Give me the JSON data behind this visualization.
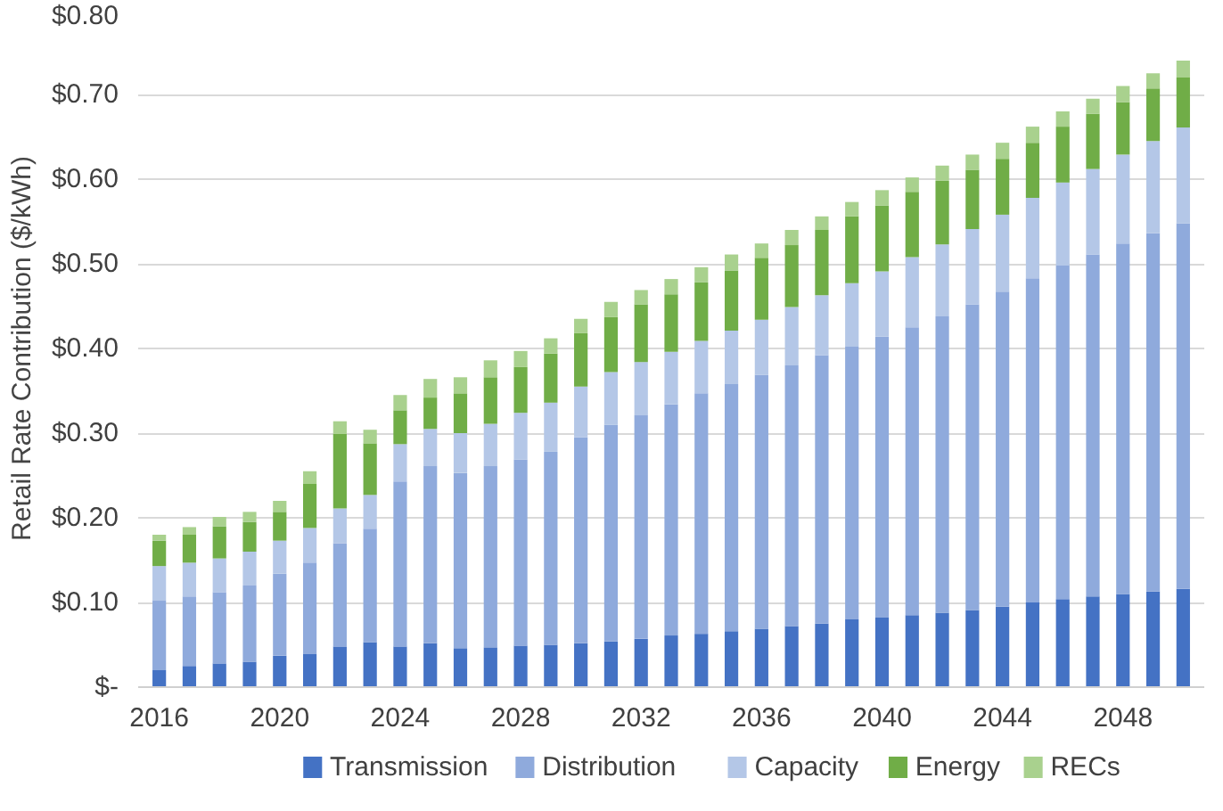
{
  "chart_data": {
    "type": "bar",
    "stacked": true,
    "ylabel": "Retail Rate Contribution ($/kWh)",
    "x": [
      2016,
      2017,
      2018,
      2019,
      2020,
      2021,
      2022,
      2023,
      2024,
      2025,
      2026,
      2027,
      2028,
      2029,
      2030,
      2031,
      2032,
      2033,
      2034,
      2035,
      2036,
      2037,
      2038,
      2039,
      2040,
      2041,
      2042,
      2043,
      2044,
      2045,
      2046,
      2047,
      2048,
      2049,
      2050
    ],
    "xlim": [
      2015.3,
      2050.7
    ],
    "xticks": [
      2016,
      2020,
      2024,
      2028,
      2032,
      2036,
      2040,
      2044,
      2048
    ],
    "ylim": [
      0,
      0.8
    ],
    "yticks": [
      {
        "value": 0,
        "label": "$-"
      },
      {
        "value": 0.1,
        "label": "$0.10"
      },
      {
        "value": 0.2,
        "label": "$0.20"
      },
      {
        "value": 0.3,
        "label": "$0.30"
      },
      {
        "value": 0.4,
        "label": "$0.40"
      },
      {
        "value": 0.5,
        "label": "$0.50"
      },
      {
        "value": 0.6,
        "label": "$0.60"
      },
      {
        "value": 0.7,
        "label": "$0.70"
      },
      {
        "value": 0.8,
        "label": "$0.80"
      }
    ],
    "grid": "y",
    "legend": "bottom",
    "series": [
      {
        "name": "Transmission",
        "color": "#4472c4",
        "values": [
          0.02,
          0.025,
          0.028,
          0.03,
          0.037,
          0.039,
          0.048,
          0.053,
          0.048,
          0.052,
          0.046,
          0.047,
          0.049,
          0.05,
          0.052,
          0.054,
          0.057,
          0.061,
          0.063,
          0.066,
          0.069,
          0.072,
          0.075,
          0.08,
          0.082,
          0.085,
          0.088,
          0.091,
          0.095,
          0.1,
          0.104,
          0.107,
          0.11,
          0.113,
          0.116
        ]
      },
      {
        "name": "Distribution",
        "color": "#8faadc",
        "values": [
          0.082,
          0.082,
          0.084,
          0.09,
          0.097,
          0.108,
          0.122,
          0.134,
          0.195,
          0.209,
          0.207,
          0.214,
          0.22,
          0.228,
          0.243,
          0.256,
          0.264,
          0.273,
          0.284,
          0.292,
          0.3,
          0.308,
          0.317,
          0.322,
          0.332,
          0.34,
          0.35,
          0.361,
          0.372,
          0.383,
          0.394,
          0.404,
          0.414,
          0.423,
          0.432
        ]
      },
      {
        "name": "Capacity",
        "color": "#b4c7e7",
        "values": [
          0.041,
          0.04,
          0.04,
          0.04,
          0.039,
          0.041,
          0.041,
          0.04,
          0.044,
          0.044,
          0.047,
          0.05,
          0.055,
          0.058,
          0.06,
          0.062,
          0.063,
          0.062,
          0.062,
          0.063,
          0.065,
          0.069,
          0.071,
          0.075,
          0.077,
          0.083,
          0.085,
          0.089,
          0.091,
          0.095,
          0.098,
          0.101,
          0.105,
          0.109,
          0.113
        ]
      },
      {
        "name": "Energy",
        "color": "#70ad47",
        "values": [
          0.03,
          0.033,
          0.038,
          0.035,
          0.034,
          0.052,
          0.088,
          0.061,
          0.04,
          0.037,
          0.047,
          0.055,
          0.054,
          0.058,
          0.063,
          0.065,
          0.068,
          0.068,
          0.069,
          0.071,
          0.073,
          0.073,
          0.077,
          0.079,
          0.078,
          0.077,
          0.075,
          0.07,
          0.066,
          0.065,
          0.066,
          0.065,
          0.062,
          0.062,
          0.059
        ]
      },
      {
        "name": "RECs",
        "color": "#a9d18e",
        "values": [
          0.007,
          0.009,
          0.011,
          0.012,
          0.013,
          0.015,
          0.015,
          0.016,
          0.018,
          0.022,
          0.019,
          0.02,
          0.019,
          0.018,
          0.017,
          0.018,
          0.017,
          0.018,
          0.018,
          0.019,
          0.017,
          0.018,
          0.016,
          0.017,
          0.018,
          0.017,
          0.018,
          0.018,
          0.019,
          0.019,
          0.018,
          0.018,
          0.019,
          0.018,
          0.02
        ]
      }
    ]
  }
}
